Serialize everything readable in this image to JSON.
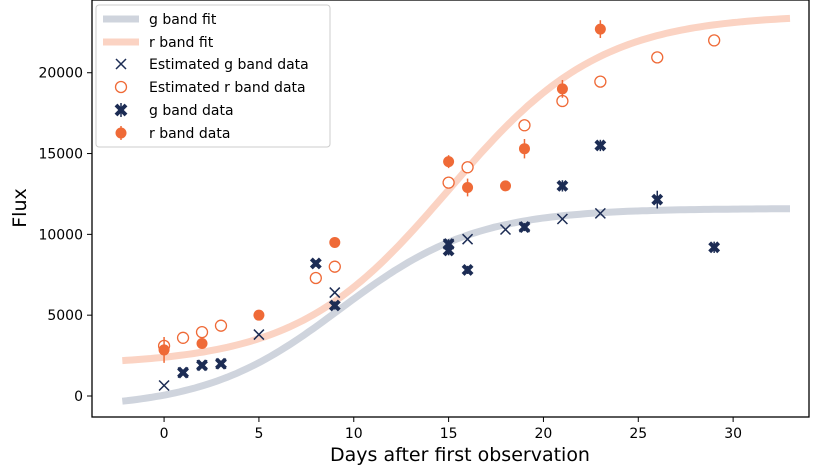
{
  "chart_data": {
    "type": "scatter",
    "title": "",
    "xlabel": "Days after first observation",
    "ylabel": "Flux",
    "xlim": [
      -3.8,
      34
    ],
    "ylim": [
      -1300,
      24500
    ],
    "x_ticks": [
      0,
      5,
      10,
      15,
      20,
      25,
      30
    ],
    "y_ticks": [
      0,
      5000,
      10000,
      15000,
      20000
    ],
    "grid": false,
    "legend_position": "top-left",
    "colors": {
      "g_fit": "#cfd4dd",
      "r_fit": "#fbd3c3",
      "g_data": "#1c2c54",
      "r_data": "#ef6a37"
    },
    "fits": {
      "g_band_fit": {
        "L": 12400,
        "k": 0.28,
        "x0": 9.3,
        "offset": -800,
        "x_start": -2.2,
        "x_end": 33
      },
      "r_band_fit": {
        "L": 21700,
        "k": 0.25,
        "x0": 15,
        "offset": 1900,
        "x_start": -2.2,
        "x_end": 33
      }
    },
    "series": [
      {
        "name": "g band fit",
        "kind": "line",
        "values": "fits.g_band_fit"
      },
      {
        "name": "r band fit",
        "kind": "line",
        "values": "fits.r_band_fit"
      },
      {
        "name": "Estimated g band data",
        "kind": "marker-x",
        "points": [
          [
            0,
            650
          ],
          [
            1,
            1450
          ],
          [
            2,
            1900
          ],
          [
            3,
            2000
          ],
          [
            5,
            3800
          ],
          [
            9,
            6400
          ],
          [
            15,
            9400
          ],
          [
            16,
            9700
          ],
          [
            18,
            10300
          ],
          [
            19,
            10450
          ],
          [
            21,
            10950
          ],
          [
            23,
            11300
          ]
        ]
      },
      {
        "name": "Estimated r band data",
        "kind": "marker-open-circle",
        "points": [
          [
            0,
            3100
          ],
          [
            1,
            3600
          ],
          [
            2,
            3950
          ],
          [
            3,
            4350
          ],
          [
            8,
            7300
          ],
          [
            9,
            8000
          ],
          [
            15,
            13200
          ],
          [
            16,
            14150
          ],
          [
            19,
            16750
          ],
          [
            21,
            18250
          ],
          [
            23,
            19450
          ],
          [
            26,
            20950
          ],
          [
            29,
            22000
          ]
        ]
      },
      {
        "name": "g band data",
        "kind": "marker-bold-x",
        "points": [
          [
            1,
            1450,
            150
          ],
          [
            2,
            1900,
            180
          ],
          [
            3,
            2000,
            150
          ],
          [
            8,
            8200,
            200
          ],
          [
            9,
            5600,
            250
          ],
          [
            15,
            9000,
            300
          ],
          [
            15,
            9400,
            300
          ],
          [
            16,
            7800,
            250
          ],
          [
            19,
            10450,
            250
          ],
          [
            21,
            13000,
            350
          ],
          [
            23,
            15500,
            350
          ],
          [
            26,
            12150,
            550
          ],
          [
            29,
            9200,
            350
          ]
        ]
      },
      {
        "name": "r band data",
        "kind": "marker-filled-circle",
        "points": [
          [
            0,
            2850,
            800
          ],
          [
            2,
            3250,
            300
          ],
          [
            5,
            5000,
            250
          ],
          [
            9,
            9500,
            300
          ],
          [
            15,
            14500,
            400
          ],
          [
            16,
            12900,
            550
          ],
          [
            18,
            13000,
            300
          ],
          [
            19,
            15300,
            600
          ],
          [
            21,
            19000,
            550
          ],
          [
            23,
            22700,
            550
          ]
        ]
      }
    ]
  },
  "legend": {
    "entries": [
      "g band fit",
      "r band fit",
      "Estimated g band data",
      "Estimated r band data",
      "g band data",
      "r band data"
    ]
  }
}
